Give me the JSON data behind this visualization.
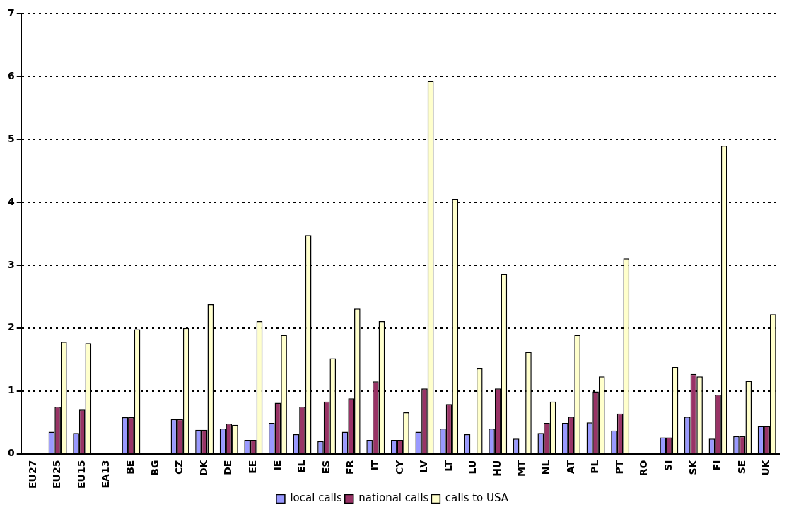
{
  "chart_data": {
    "type": "bar",
    "categories": [
      "EU27",
      "EU25",
      "EU15",
      "EA13",
      "BE",
      "BG",
      "CZ",
      "DK",
      "DE",
      "EE",
      "IE",
      "EL",
      "ES",
      "FR",
      "IT",
      "CY",
      "LV",
      "LT",
      "LU",
      "HU",
      "MT",
      "NL",
      "AT",
      "PL",
      "PT",
      "RO",
      "SI",
      "SK",
      "FI",
      "SE",
      "UK"
    ],
    "series": [
      {
        "name": "local calls",
        "color": "#9999ff",
        "values": [
          null,
          0.35,
          0.33,
          null,
          0.58,
          null,
          0.55,
          0.38,
          0.4,
          0.22,
          0.49,
          0.31,
          0.2,
          0.35,
          0.22,
          0.22,
          0.35,
          0.4,
          0.31,
          0.4,
          0.24,
          0.33,
          0.49,
          0.5,
          0.37,
          null,
          0.26,
          0.59,
          0.24,
          0.28,
          0.44
        ]
      },
      {
        "name": "national calls",
        "color": "#993366",
        "values": [
          null,
          0.75,
          0.7,
          null,
          0.58,
          null,
          0.55,
          0.38,
          0.48,
          0.22,
          0.81,
          0.75,
          0.83,
          0.88,
          1.15,
          0.22,
          1.04,
          0.79,
          null,
          1.04,
          null,
          0.49,
          0.59,
          0.99,
          0.64,
          null,
          0.26,
          1.27,
          0.94,
          0.28,
          0.44
        ]
      },
      {
        "name": "calls to USA",
        "color": "#ffffcc",
        "values": [
          null,
          1.78,
          1.76,
          null,
          1.98,
          null,
          2.0,
          2.38,
          0.46,
          2.11,
          1.89,
          3.48,
          1.52,
          2.31,
          2.11,
          0.66,
          5.93,
          4.05,
          1.36,
          2.86,
          1.62,
          0.83,
          1.89,
          1.23,
          3.11,
          null,
          1.38,
          1.23,
          4.9,
          1.16,
          2.22
        ]
      }
    ],
    "ylim": [
      0,
      7
    ],
    "yticks": [
      0,
      1,
      2,
      3,
      4,
      5,
      6,
      7
    ],
    "grid": "y",
    "legend": "bottom"
  }
}
